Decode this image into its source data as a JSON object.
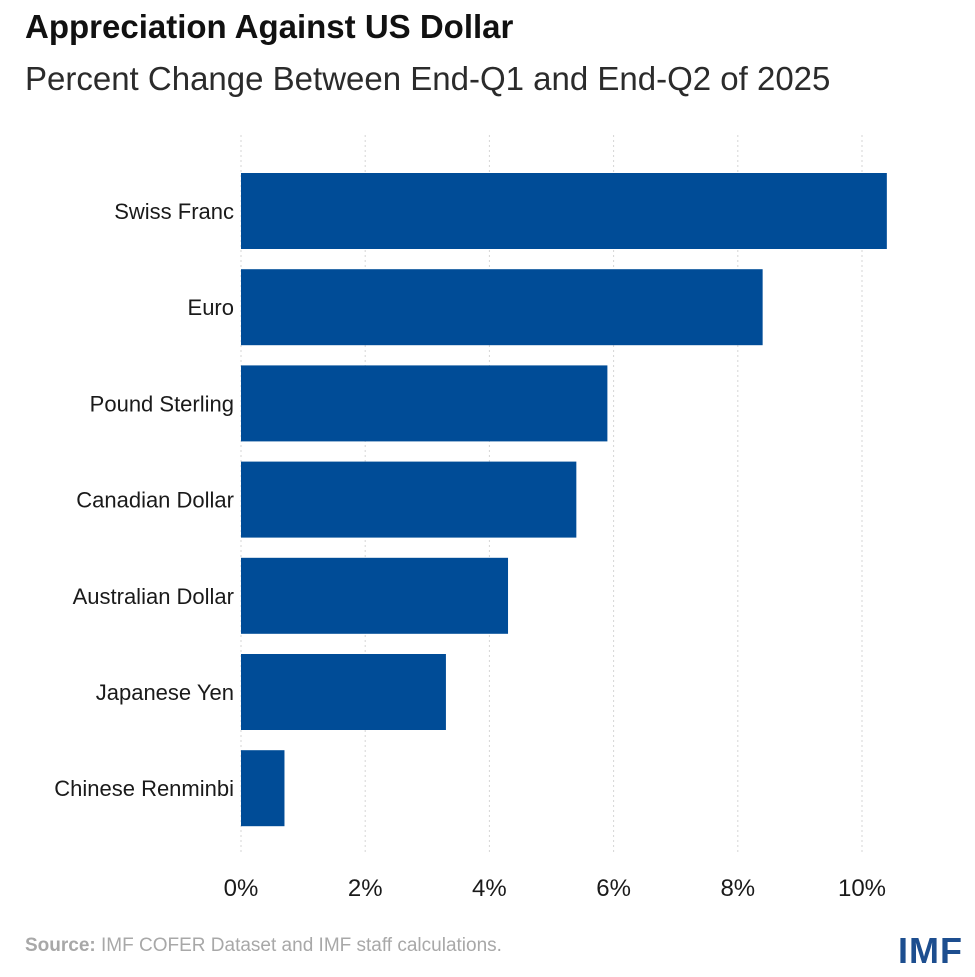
{
  "header": {
    "title": "Appreciation Against US Dollar",
    "subtitle": "Percent Change Between End-Q1 and End-Q2 of 2025"
  },
  "footer": {
    "source_label": "Source:",
    "source_text": " IMF COFER Dataset and IMF staff calculations.",
    "logo": "IMF"
  },
  "colors": {
    "bar": "#004c97",
    "grid": "#d5d5d5",
    "logo": "#1d4e8f"
  },
  "chart_data": {
    "type": "bar",
    "orientation": "horizontal",
    "title": "Appreciation Against US Dollar",
    "subtitle": "Percent Change Between End-Q1 and End-Q2 of 2025",
    "categories": [
      "Swiss Franc",
      "Euro",
      "Pound Sterling",
      "Canadian Dollar",
      "Australian Dollar",
      "Japanese Yen",
      "Chinese Renminbi"
    ],
    "values": [
      10.4,
      8.4,
      5.9,
      5.4,
      4.3,
      3.3,
      0.7
    ],
    "xlabel": "",
    "ylabel": "",
    "xlim": [
      0,
      10
    ],
    "ticks": [
      0,
      2,
      4,
      6,
      8,
      10
    ],
    "tick_labels": [
      "0%",
      "2%",
      "4%",
      "6%",
      "8%",
      "10%"
    ],
    "grid": true,
    "legend": "none"
  }
}
